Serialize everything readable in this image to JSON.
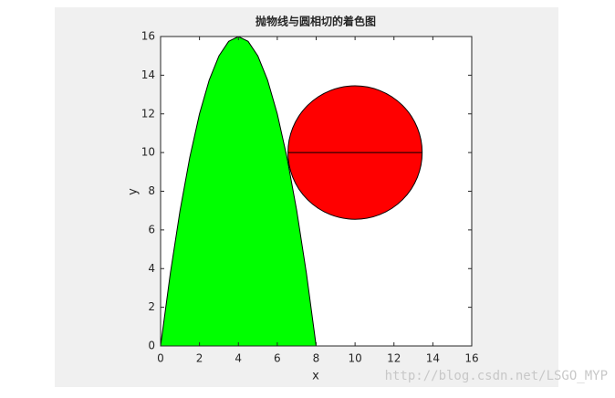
{
  "chart_data": {
    "type": "area",
    "title": "抛物线与圆相切的着色图",
    "x_label": "x",
    "y_label": "y",
    "xlim": [
      0,
      16
    ],
    "ylim": [
      0,
      16
    ],
    "xticks": [
      0,
      2,
      4,
      6,
      8,
      10,
      12,
      14,
      16
    ],
    "yticks": [
      0,
      2,
      4,
      6,
      8,
      10,
      12,
      14,
      16
    ],
    "series": [
      {
        "color": "#00ff00",
        "x": [
          0,
          0.5,
          1,
          1.5,
          2,
          2.5,
          3,
          3.5,
          4,
          4.5,
          5,
          5.5,
          6,
          6.5,
          7,
          7.5,
          8
        ],
        "values": [
          0,
          3.75,
          7,
          9.75,
          12,
          13.75,
          15,
          15.75,
          16,
          15.75,
          15,
          13.75,
          12,
          9.75,
          7,
          3.75,
          0
        ]
      }
    ],
    "circle": {
      "center": [
        10,
        10
      ],
      "radius": 3.45,
      "color": "#ff0000"
    },
    "watermark": "http://blog.csdn.net/LSGO_MYP"
  }
}
